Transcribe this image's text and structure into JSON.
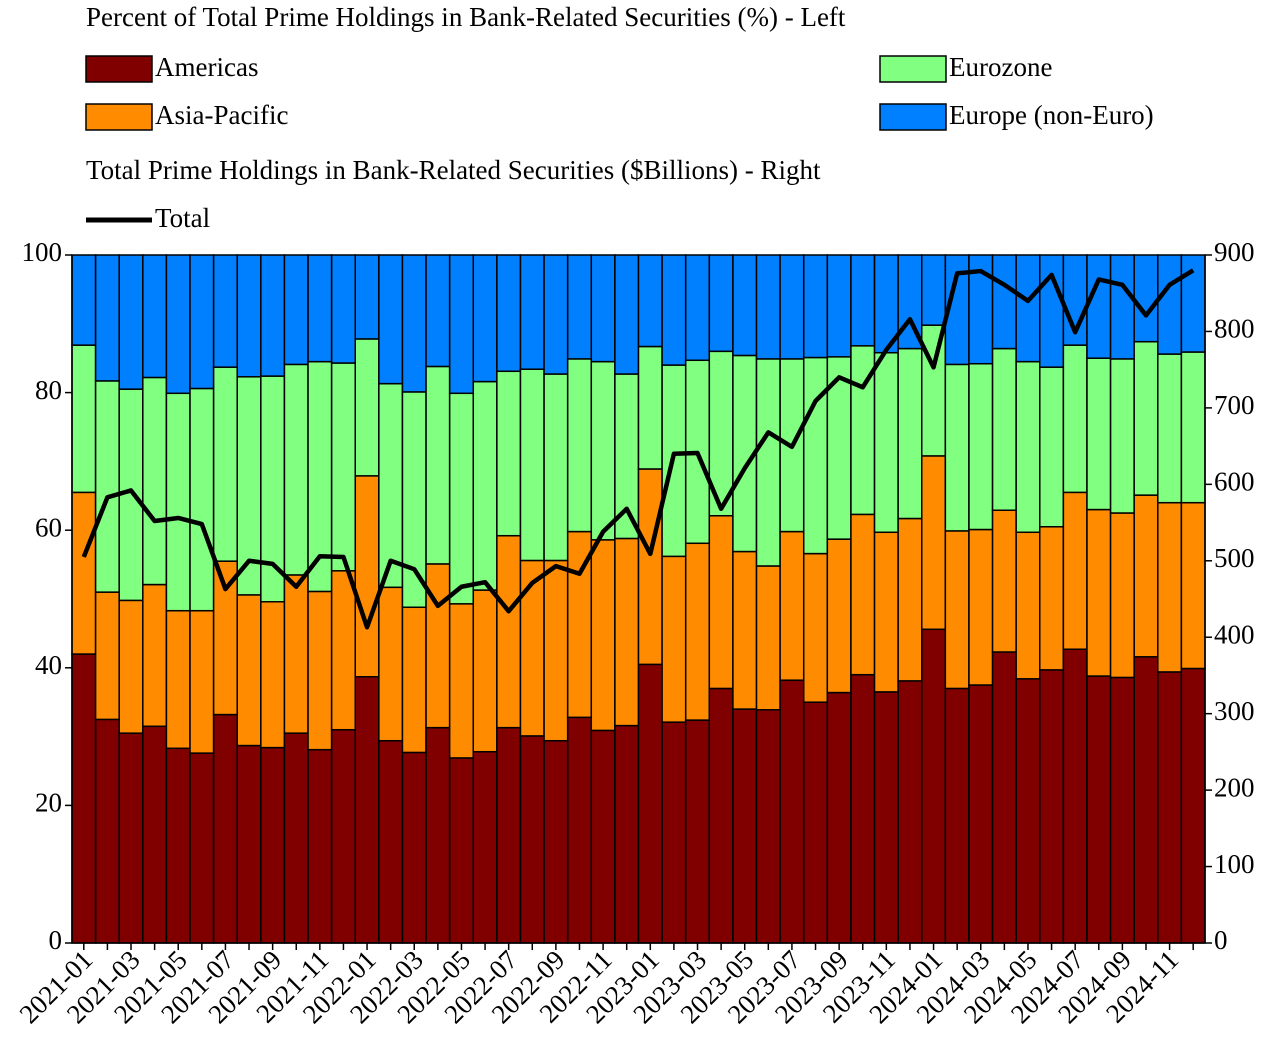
{
  "chart_data": {
    "type": "bar",
    "legend_title_left": "Percent of Total Prime Holdings in Bank-Related Securities (%) - Left",
    "legend_title_right": "Total Prime Holdings in Bank-Related Securities ($Billions) - Right",
    "stacked": true,
    "categories": [
      "2021-01",
      null,
      "2021-03",
      null,
      "2021-05",
      null,
      "2021-07",
      null,
      "2021-09",
      null,
      "2021-11",
      null,
      "2022-01",
      null,
      "2022-03",
      null,
      "2022-05",
      null,
      "2022-07",
      null,
      "2022-09",
      null,
      "2022-11",
      null,
      "2023-01",
      null,
      "2023-03",
      null,
      "2023-05",
      null,
      "2023-07",
      null,
      "2023-09",
      null,
      "2023-11",
      null,
      "2024-01",
      null,
      "2024-03",
      null,
      "2024-05",
      null,
      "2024-07",
      null,
      "2024-09",
      null,
      "2024-11",
      null
    ],
    "series": [
      {
        "name": "Americas",
        "color": "#800000",
        "values": [
          42,
          32.5,
          30.5,
          31.5,
          28.3,
          27.6,
          33.2,
          28.7,
          28.4,
          30.5,
          28.1,
          31,
          38.7,
          29.4,
          27.7,
          31.3,
          26.9,
          27.8,
          31.3,
          30.1,
          29.4,
          32.8,
          30.9,
          31.6,
          40.5,
          32.1,
          32.4,
          37,
          34,
          33.9,
          38.2,
          35,
          36.4,
          39,
          36.5,
          38.1,
          45.6,
          37,
          37.5,
          42.3,
          38.4,
          39.7,
          42.7,
          38.8,
          38.6,
          41.6,
          39.4,
          39.9
        ]
      },
      {
        "name": "Asia-Pacific",
        "color": "#ff8c00",
        "values": [
          23.5,
          18.5,
          19.3,
          20.6,
          20,
          20.7,
          22.3,
          21.9,
          21.2,
          23,
          23,
          23.1,
          29.2,
          22.3,
          21.1,
          23.8,
          22.4,
          23.5,
          27.9,
          25.5,
          26.2,
          27,
          27.7,
          27.2,
          28.4,
          24.1,
          25.7,
          25.1,
          22.9,
          20.9,
          21.6,
          21.6,
          22.3,
          23.3,
          23.2,
          23.6,
          25.2,
          22.9,
          22.6,
          20.6,
          21.3,
          20.8,
          22.8,
          24.2,
          23.9,
          23.5,
          24.6,
          24.1
        ]
      },
      {
        "name": "Eurozone",
        "color": "#80ff80",
        "values": [
          21.4,
          30.7,
          30.7,
          30.1,
          31.6,
          32.3,
          28.2,
          31.7,
          32.8,
          30.6,
          33.4,
          30.2,
          19.9,
          29.6,
          31.3,
          28.7,
          30.6,
          30.3,
          23.9,
          27.8,
          27.1,
          25.1,
          25.9,
          23.9,
          17.8,
          27.8,
          26.6,
          23.9,
          28.5,
          30.1,
          25.1,
          28.5,
          26.5,
          24.5,
          26.1,
          24.7,
          19,
          24.2,
          24.1,
          23.5,
          24.8,
          23.2,
          21.4,
          22,
          22.4,
          22.3,
          21.6,
          21.9
        ]
      },
      {
        "name": "Europe (non-Euro)",
        "color": "#0080ff",
        "values": [
          13.1,
          18.3,
          19.5,
          17.8,
          20.1,
          19.4,
          16.3,
          17.7,
          17.6,
          15.9,
          15.5,
          15.7,
          12.2,
          18.7,
          19.9,
          16.2,
          20.1,
          18.4,
          16.9,
          16.6,
          17.3,
          15.1,
          15.5,
          17.3,
          13.3,
          16,
          15.3,
          14,
          14.6,
          15.1,
          15.1,
          14.9,
          14.8,
          13.2,
          14.2,
          13.6,
          10.2,
          15.9,
          15.8,
          13.6,
          15.5,
          16.3,
          13.1,
          15,
          15.1,
          12.6,
          14.4,
          14.1
        ]
      },
      {
        "name": "Total",
        "color": "#000000",
        "type": "line",
        "axis": "y2",
        "values": [
          505,
          583,
          592,
          552,
          556,
          548,
          463,
          500,
          496,
          466,
          506,
          505,
          413,
          500,
          489,
          441,
          466,
          472,
          434,
          471,
          493,
          483,
          538,
          568,
          509,
          640,
          641,
          568,
          621,
          668,
          649,
          709,
          740,
          727,
          776,
          816,
          753,
          876,
          879,
          861,
          840,
          874,
          799,
          868,
          861,
          821,
          861,
          880
        ]
      }
    ],
    "ylim": [
      0,
      100
    ],
    "yticks": [
      0,
      20,
      40,
      60,
      80,
      100
    ],
    "y2lim": [
      0,
      900
    ],
    "y2ticks": [
      0,
      100,
      200,
      300,
      400,
      500,
      600,
      700,
      800,
      900
    ]
  }
}
